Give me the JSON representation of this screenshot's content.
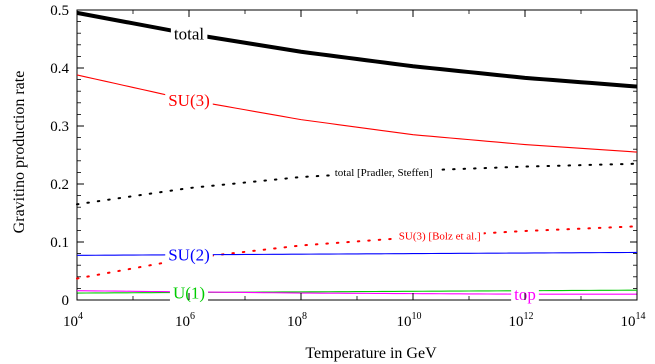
{
  "chart_data": {
    "type": "line",
    "xlabel": "Temperature in GeV",
    "ylabel": "Gravitino production rate",
    "x_scale": "log",
    "xlim": [
      10000,
      100000000000000
    ],
    "ylim": [
      0,
      0.5
    ],
    "grid": false,
    "x_ticks": [
      {
        "base": "10",
        "exp": "4",
        "value": 10000
      },
      {
        "base": "10",
        "exp": "6",
        "value": 1000000
      },
      {
        "base": "10",
        "exp": "8",
        "value": 100000000
      },
      {
        "base": "10",
        "exp": "10",
        "value": 10000000000
      },
      {
        "base": "10",
        "exp": "12",
        "value": 1000000000000
      },
      {
        "base": "10",
        "exp": "14",
        "value": 100000000000000
      }
    ],
    "y_ticks": [
      {
        "label": "0",
        "value": 0
      },
      {
        "label": "0.1",
        "value": 0.1
      },
      {
        "label": "0.2",
        "value": 0.2
      },
      {
        "label": "0.3",
        "value": 0.3
      },
      {
        "label": "0.4",
        "value": 0.4
      },
      {
        "label": "0.5",
        "value": 0.5
      }
    ],
    "series": [
      {
        "name": "total",
        "color": "#000000",
        "style": "solid-thick",
        "x": [
          10000,
          1000000,
          100000000,
          10000000000,
          1000000000000,
          100000000000000
        ],
        "y": [
          0.495,
          0.459,
          0.428,
          0.403,
          0.383,
          0.368
        ]
      },
      {
        "name": "SU(3)",
        "color": "#ff0000",
        "style": "solid",
        "x": [
          10000,
          1000000,
          100000000,
          10000000000,
          1000000000000,
          100000000000000
        ],
        "y": [
          0.388,
          0.345,
          0.311,
          0.285,
          0.268,
          0.255
        ]
      },
      {
        "name": "total [Pradler, Steffen]",
        "color": "#000000",
        "style": "dotted",
        "x": [
          10000,
          1000000,
          100000000,
          10000000000,
          1000000000000,
          100000000000000
        ],
        "y": [
          0.165,
          0.193,
          0.212,
          0.223,
          0.23,
          0.235
        ]
      },
      {
        "name": "SU(3) [Bolz et al.]",
        "color": "#ff0000",
        "style": "dotted",
        "x": [
          10000,
          1000000,
          100000000,
          10000000000,
          1000000000000,
          100000000000000
        ],
        "y": [
          0.037,
          0.072,
          0.094,
          0.108,
          0.119,
          0.127
        ]
      },
      {
        "name": "SU(2)",
        "color": "#0000ff",
        "style": "solid",
        "x": [
          10000,
          1000000,
          100000000,
          10000000000,
          1000000000000,
          100000000000000
        ],
        "y": [
          0.077,
          0.078,
          0.079,
          0.08,
          0.081,
          0.082
        ]
      },
      {
        "name": "U(1)",
        "color": "#00cc00",
        "style": "solid",
        "x": [
          10000,
          1000000,
          100000000,
          10000000000,
          1000000000000,
          100000000000000
        ],
        "y": [
          0.012,
          0.013,
          0.014,
          0.015,
          0.016,
          0.017
        ]
      },
      {
        "name": "top",
        "color": "#ff00ff",
        "style": "solid",
        "x": [
          10000,
          1000000,
          100000000,
          10000000000,
          1000000000000,
          100000000000000
        ],
        "y": [
          0.016,
          0.014,
          0.012,
          0.011,
          0.01,
          0.01
        ]
      }
    ],
    "annotations": [
      {
        "text": "total",
        "series": "total",
        "color": "#000000",
        "x": 1000000
      },
      {
        "text": "SU(3)",
        "series": "SU(3)",
        "color": "#ff0000",
        "x": 1000000
      },
      {
        "text": "total [Pradler, Steffen]",
        "series": "total [Pradler, Steffen]",
        "color": "#000000",
        "x": 3000000000
      },
      {
        "text": "SU(3) [Bolz et al.]",
        "series": "SU(3) [Bolz et al.]",
        "color": "#ff0000",
        "x": 30000000000
      },
      {
        "text": "SU(2)",
        "series": "SU(2)",
        "color": "#0000ff",
        "x": 1000000
      },
      {
        "text": "U(1)",
        "series": "U(1)",
        "color": "#00cc00",
        "x": 1000000
      },
      {
        "text": "top",
        "series": "top",
        "color": "#ff00ff",
        "x": 1000000000000
      }
    ]
  }
}
